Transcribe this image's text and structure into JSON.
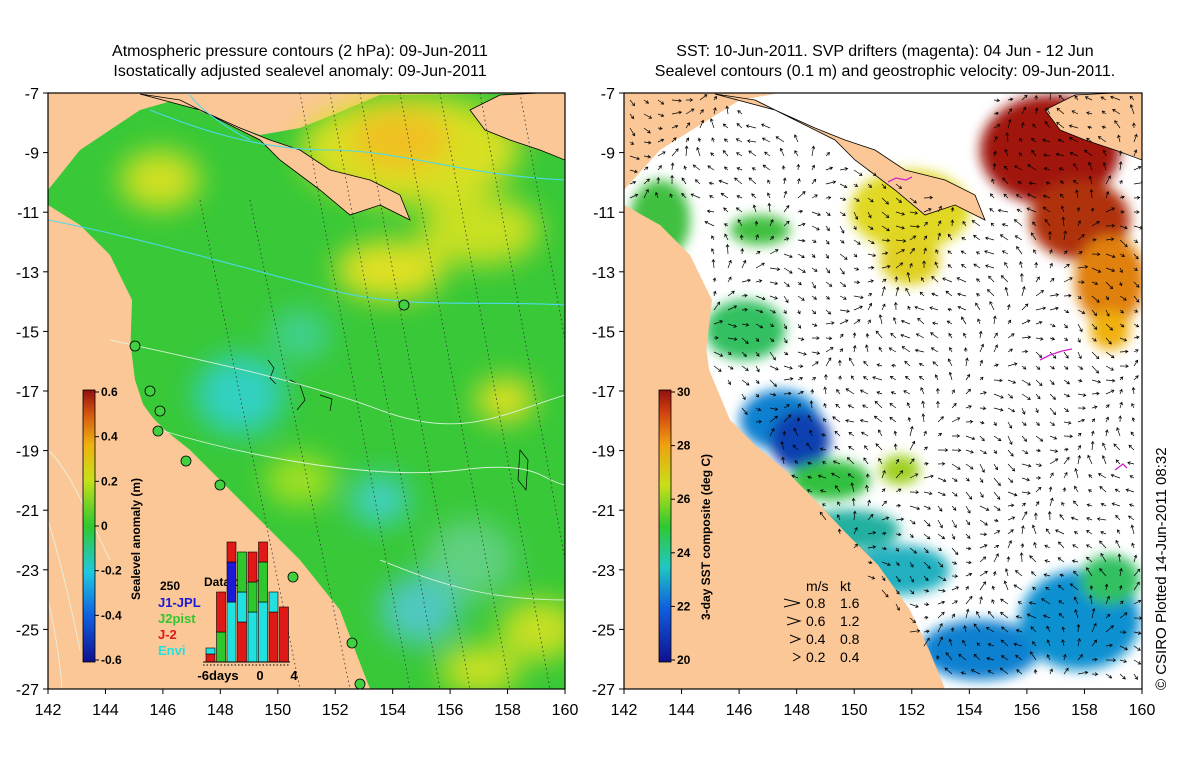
{
  "left_panel": {
    "title_line1": "Atmospheric pressure contours (2 hPa): 09-Jun-2011",
    "title_line2": "Isostatically adjusted sealevel anomaly: 09-Jun-2011",
    "lat_ticks": [
      "-7",
      "-9",
      "-11",
      "-13",
      "-15",
      "-17",
      "-19",
      "-21",
      "-23",
      "-25",
      "-27"
    ],
    "lon_ticks": [
      "142",
      "144",
      "146",
      "148",
      "150",
      "152",
      "154",
      "156",
      "158",
      "160"
    ],
    "colorbar_label": "Sealevel anomaly (m)",
    "colorbar_ticks": [
      "0.6",
      "0.4",
      "0.2",
      "0",
      "-0.2",
      "-0.4",
      "-0.6"
    ],
    "inset": {
      "title": "Data count",
      "ymax_label": "250",
      "legend": [
        {
          "name": "J1-JPL",
          "color": "#1a1ad8"
        },
        {
          "name": "J2pist",
          "color": "#2ec82e"
        },
        {
          "name": "J-2",
          "color": "#e01818"
        },
        {
          "name": "Envi",
          "color": "#20e0e0"
        }
      ],
      "x_ticks": [
        "-6days",
        "0",
        "4"
      ]
    }
  },
  "right_panel": {
    "title_line1": "SST: 10-Jun-2011. SVP drifters (magenta): 04 Jun - 12 Jun",
    "title_line2": "Sealevel contours (0.1 m) and geostrophic velocity: 09-Jun-2011.",
    "lat_ticks": [
      "-7",
      "-9",
      "-11",
      "-13",
      "-15",
      "-17",
      "-19",
      "-21",
      "-23",
      "-25",
      "-27"
    ],
    "lon_ticks": [
      "142",
      "144",
      "146",
      "148",
      "150",
      "152",
      "154",
      "156",
      "158",
      "160"
    ],
    "colorbar_label": "3-day SST composite (deg C)",
    "colorbar_ticks": [
      "30",
      "28",
      "26",
      "24",
      "22",
      "20"
    ],
    "speed_legend": {
      "header_ms": "m/s",
      "header_kt": "kt",
      "rows": [
        {
          "ms": "0.8",
          "kt": "1.6"
        },
        {
          "ms": "0.6",
          "kt": "1.2"
        },
        {
          "ms": "0.4",
          "kt": "0.8"
        },
        {
          "ms": "0.2",
          "kt": "0.4"
        }
      ]
    },
    "credit": "© CSIRO Plotted 14-Jun-2011 08:32"
  },
  "colors": {
    "land": "#fbc797",
    "ocean_base": "#33c93a",
    "axis": "#000000",
    "contour_cyan": "#4fd8e8",
    "contour_white": "#e8f4e8"
  }
}
